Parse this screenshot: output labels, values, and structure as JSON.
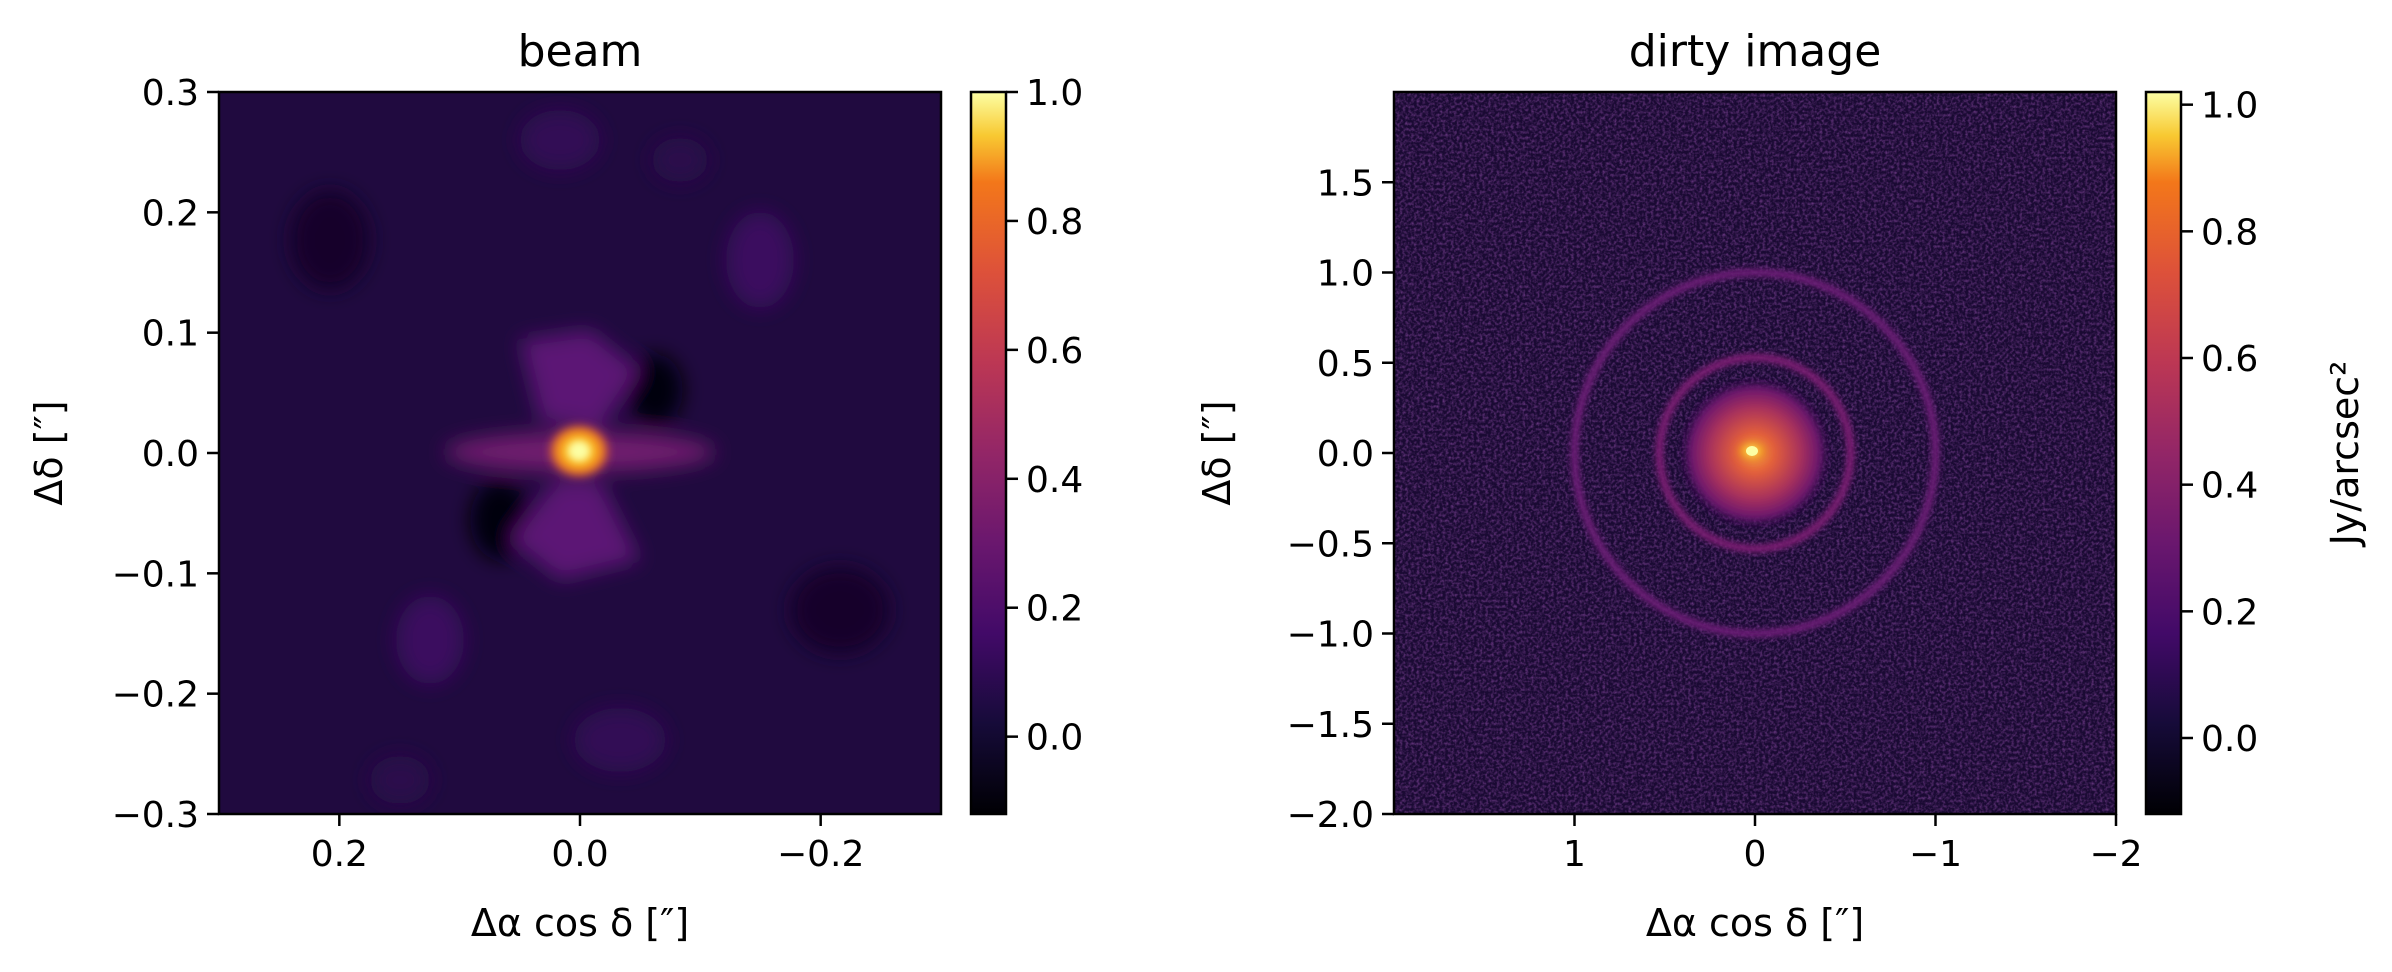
{
  "chart_data": [
    {
      "type": "heatmap",
      "title": "beam",
      "xlabel": "Δα cos δ [″]",
      "ylabel": "Δδ [″]",
      "xlim": [
        0.3,
        -0.3
      ],
      "ylim": [
        -0.3,
        0.3
      ],
      "xticks": [
        0.2,
        0.0,
        -0.2
      ],
      "xtick_labels": [
        "0.2",
        "0.0",
        "−0.2"
      ],
      "yticks": [
        -0.3,
        -0.2,
        -0.1,
        0.0,
        0.1,
        0.2,
        0.3
      ],
      "ytick_labels": [
        "−0.3",
        "−0.2",
        "−0.1",
        "0.0",
        "0.1",
        "0.2",
        "0.3"
      ],
      "colormap": "inferno",
      "colorbar": {
        "range": [
          -0.12,
          1.0
        ],
        "ticks": [
          0.0,
          0.2,
          0.4,
          0.6,
          0.8,
          1.0
        ],
        "tick_labels": [
          "0.0",
          "0.2",
          "0.4",
          "0.6",
          "0.8",
          "1.0"
        ],
        "label": ""
      },
      "features": {
        "peak": {
          "x": 0.0,
          "y": 0.0,
          "value": 1.0
        },
        "sidelobe_level": 0.2
      }
    },
    {
      "type": "heatmap",
      "title": "dirty image",
      "xlabel": "Δα cos δ [″]",
      "ylabel": "Δδ [″]",
      "xlim": [
        2.0,
        -2.0
      ],
      "ylim": [
        -2.0,
        2.0
      ],
      "xticks": [
        1,
        0,
        -1,
        -2
      ],
      "xtick_labels": [
        "1",
        "0",
        "−1",
        "−2"
      ],
      "yticks": [
        -2.0,
        -1.5,
        -1.0,
        -0.5,
        0.0,
        0.5,
        1.0,
        1.5
      ],
      "ytick_labels": [
        "−2.0",
        "−1.5",
        "−1.0",
        "−0.5",
        "0.0",
        "0.5",
        "1.0",
        "1.5"
      ],
      "colormap": "inferno",
      "colorbar": {
        "range": [
          -0.12,
          1.02
        ],
        "ticks": [
          0.0,
          0.2,
          0.4,
          0.6,
          0.8,
          1.0
        ],
        "tick_labels": [
          "0.0",
          "0.2",
          "0.4",
          "0.6",
          "0.8",
          "1.0"
        ],
        "label": "Jy/arcsec²"
      },
      "features": {
        "center_peak": {
          "x": 0.0,
          "y": 0.0,
          "value": 1.0
        },
        "inner_disk_radius": 0.42,
        "rings": [
          {
            "radius": 0.53,
            "value": 0.3
          },
          {
            "radius": 1.0,
            "value": 0.28
          }
        ]
      }
    }
  ]
}
